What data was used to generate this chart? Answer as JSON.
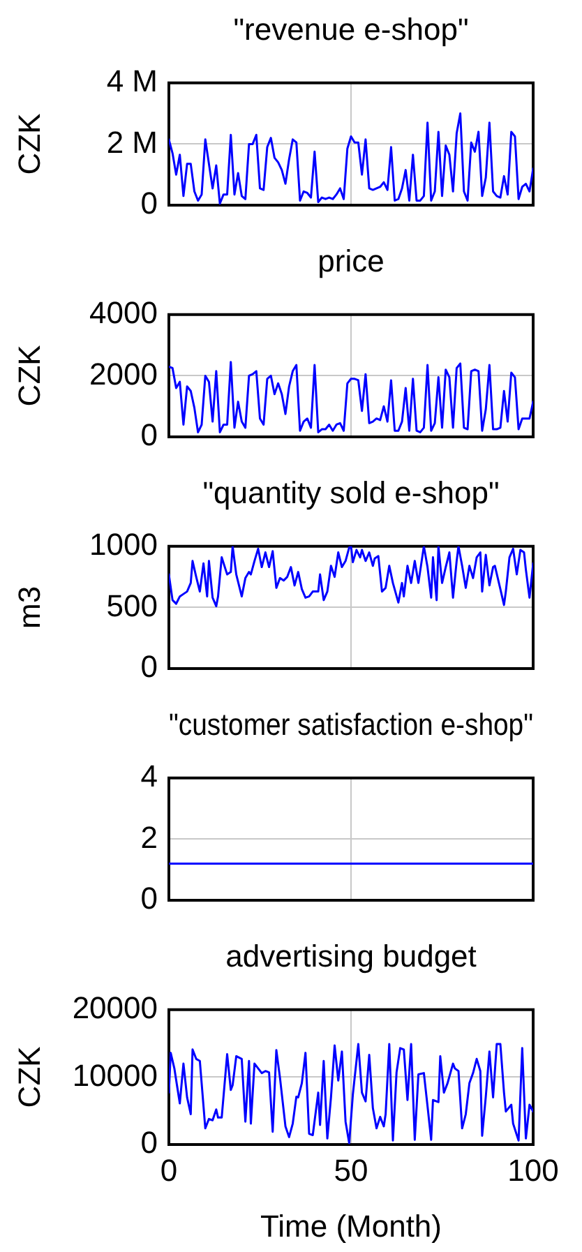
{
  "chart_data": [
    {
      "type": "line",
      "title": "\"revenue e-shop\"",
      "ylabel": "CZK",
      "color": "#0000ff",
      "xlim": [
        0,
        100
      ],
      "xticks": [
        0,
        50,
        100
      ],
      "ylim": [
        0,
        4000000
      ],
      "yticks": [
        0,
        {
          "value": 2000000,
          "label": "2 M"
        },
        {
          "value": 4000000,
          "label": "4 M"
        }
      ],
      "grid": true,
      "tick_labels": "y",
      "x": [
        0,
        1,
        2,
        3,
        4,
        5,
        6,
        7,
        8,
        9,
        10,
        11,
        12,
        13,
        14,
        15,
        16,
        17,
        18,
        19,
        20,
        21,
        22,
        23,
        24,
        25,
        26,
        27,
        28,
        29,
        30,
        31,
        32,
        33,
        34,
        35,
        36,
        37,
        38,
        39,
        40,
        41,
        42,
        43,
        44,
        45,
        46,
        47,
        48,
        49,
        50,
        51,
        52,
        53,
        54,
        55,
        56,
        57,
        58,
        59,
        60,
        61,
        62,
        63,
        64,
        65,
        66,
        67,
        68,
        69,
        70,
        71,
        72,
        73,
        74,
        75,
        76,
        77,
        78,
        79,
        80,
        81,
        82,
        83,
        84,
        85,
        86,
        87,
        88,
        89,
        90,
        91,
        92,
        93,
        94,
        95,
        96,
        97,
        98,
        99,
        100
      ],
      "values": [
        2150000,
        1700000,
        1000000,
        1650000,
        300000,
        1350000,
        1350000,
        450000,
        150000,
        350000,
        2150000,
        1350000,
        550000,
        1300000,
        50000,
        350000,
        350000,
        2300000,
        350000,
        1050000,
        300000,
        200000,
        2000000,
        2000000,
        2300000,
        550000,
        500000,
        1900000,
        2200000,
        1550000,
        1400000,
        1150000,
        700000,
        1500000,
        2150000,
        2050000,
        150000,
        450000,
        400000,
        250000,
        1750000,
        100000,
        250000,
        200000,
        250000,
        200000,
        350000,
        550000,
        200000,
        1850000,
        2250000,
        2050000,
        2050000,
        1000000,
        2150000,
        550000,
        500000,
        550000,
        600000,
        750000,
        500000,
        1900000,
        150000,
        200000,
        550000,
        1150000,
        150000,
        1650000,
        150000,
        150000,
        300000,
        2700000,
        150000,
        450000,
        2400000,
        300000,
        1950000,
        1650000,
        450000,
        2350000,
        3000000,
        450000,
        150000,
        2050000,
        1750000,
        2400000,
        300000,
        900000,
        2700000,
        450000,
        300000,
        250000,
        950000,
        350000,
        2400000,
        2250000,
        200000,
        600000,
        700000,
        450000,
        1200000
      ]
    },
    {
      "type": "line",
      "title": "price",
      "ylabel": "CZK",
      "color": "#0000ff",
      "xlim": [
        0,
        100
      ],
      "xticks": [
        0,
        50,
        100
      ],
      "ylim": [
        0,
        4000
      ],
      "yticks": [
        0,
        2000,
        4000
      ],
      "grid": true,
      "tick_labels": "y",
      "x": [
        0,
        1,
        2,
        3,
        4,
        5,
        6,
        7,
        8,
        9,
        10,
        11,
        12,
        13,
        14,
        15,
        16,
        17,
        18,
        19,
        20,
        21,
        22,
        23,
        24,
        25,
        26,
        27,
        28,
        29,
        30,
        31,
        32,
        33,
        34,
        35,
        36,
        37,
        38,
        39,
        40,
        41,
        42,
        43,
        44,
        45,
        46,
        47,
        48,
        49,
        50,
        51,
        52,
        53,
        54,
        55,
        56,
        57,
        58,
        59,
        60,
        61,
        62,
        63,
        64,
        65,
        66,
        67,
        68,
        69,
        70,
        71,
        72,
        73,
        74,
        75,
        76,
        77,
        78,
        79,
        80,
        81,
        82,
        83,
        84,
        85,
        86,
        87,
        88,
        89,
        90,
        91,
        92,
        93,
        94,
        95,
        96,
        97,
        98,
        99,
        100
      ],
      "values": [
        2300,
        2250,
        1600,
        1800,
        400,
        1650,
        1500,
        950,
        150,
        400,
        2000,
        1800,
        500,
        2150,
        150,
        400,
        400,
        2450,
        300,
        1150,
        500,
        300,
        2000,
        2050,
        2150,
        600,
        400,
        1900,
        2000,
        1400,
        1750,
        1400,
        750,
        1650,
        2150,
        2350,
        200,
        500,
        600,
        300,
        2350,
        150,
        250,
        250,
        400,
        200,
        400,
        450,
        200,
        1750,
        1900,
        1900,
        1850,
        850,
        2050,
        450,
        500,
        600,
        550,
        1000,
        500,
        1850,
        200,
        200,
        500,
        1600,
        200,
        1900,
        200,
        150,
        300,
        2350,
        200,
        450,
        1950,
        300,
        2200,
        1950,
        300,
        2250,
        2400,
        300,
        250,
        2150,
        2200,
        2150,
        200,
        900,
        2350,
        250,
        250,
        300,
        1500,
        500,
        2100,
        1950,
        250,
        600,
        600,
        600,
        1150
      ]
    },
    {
      "type": "line",
      "title": "\"quantity sold e-shop\"",
      "ylabel": "m3",
      "color": "#0000ff",
      "xlim": [
        0,
        100
      ],
      "xticks": [
        0,
        50,
        100
      ],
      "ylim": [
        0,
        1000
      ],
      "yticks": [
        0,
        500,
        1000
      ],
      "grid": true,
      "tick_labels": "y",
      "x": [
        0,
        1,
        2,
        3,
        4,
        5,
        6,
        6.5,
        7.5,
        8.5,
        9.5,
        10.5,
        11,
        12,
        13,
        13.5,
        14.5,
        16,
        17,
        17.5,
        18.5,
        20,
        21,
        22,
        22.5,
        23.5,
        24.5,
        25.5,
        26.5,
        27.5,
        28.5,
        29.5,
        30.5,
        31.5,
        32.5,
        33.5,
        34.5,
        35.5,
        36.5,
        37.5,
        38.5,
        39.5,
        41,
        41.5,
        42.5,
        43.5,
        44.5,
        45.5,
        46.5,
        47.5,
        48.5,
        49.5,
        50,
        50.5,
        51.5,
        52.5,
        53,
        54,
        55,
        56,
        56.5,
        57.5,
        58.5,
        59.5,
        60.5,
        61.5,
        63,
        64,
        64.5,
        65.5,
        66.5,
        67.5,
        68.5,
        70,
        71,
        72,
        72.5,
        73.5,
        74,
        75,
        76,
        77,
        78,
        79,
        79.5,
        80.5,
        81.5,
        82.5,
        83.5,
        84.5,
        85.5,
        86,
        87,
        88,
        89,
        89.5,
        91,
        92,
        92.5,
        93.5,
        94.5,
        95.5,
        96.5,
        97.5,
        98,
        99,
        100
      ],
      "values": [
        770,
        560,
        530,
        590,
        610,
        630,
        700,
        880,
        750,
        630,
        860,
        590,
        880,
        580,
        510,
        590,
        910,
        770,
        790,
        1000,
        770,
        590,
        740,
        790,
        770,
        880,
        980,
        830,
        950,
        830,
        960,
        660,
        740,
        720,
        750,
        830,
        680,
        790,
        650,
        580,
        590,
        630,
        630,
        770,
        560,
        630,
        840,
        750,
        950,
        830,
        880,
        990,
        1000,
        870,
        970,
        910,
        970,
        880,
        950,
        840,
        900,
        920,
        630,
        660,
        840,
        700,
        540,
        700,
        590,
        840,
        700,
        880,
        700,
        1000,
        830,
        580,
        910,
        560,
        1000,
        700,
        830,
        950,
        580,
        880,
        1000,
        840,
        660,
        840,
        740,
        910,
        950,
        630,
        930,
        680,
        830,
        840,
        650,
        520,
        630,
        910,
        980,
        770,
        970,
        950,
        810,
        580,
        860
      ]
    },
    {
      "type": "line",
      "title": "\"customer satisfaction e-shop\"",
      "color": "#0000ff",
      "xlim": [
        0,
        100
      ],
      "xticks": [
        0,
        50,
        100
      ],
      "ylim": [
        0,
        4
      ],
      "yticks": [
        0,
        2,
        4
      ],
      "grid": true,
      "tick_labels": "y",
      "x": [
        0,
        100
      ],
      "values": [
        1.2,
        1.2
      ]
    },
    {
      "type": "line",
      "title": "advertising budget",
      "ylabel": "CZK",
      "xlabel": "Time (Month)",
      "color": "#0000ff",
      "xlim": [
        0,
        100
      ],
      "xticks": [
        0,
        50,
        100
      ],
      "ylim": [
        0,
        20000
      ],
      "yticks": [
        0,
        10000,
        20000
      ],
      "grid": true,
      "x": [
        0,
        0.5,
        1.5,
        3,
        4,
        5,
        6,
        6.5,
        7.5,
        8.5,
        10,
        11,
        12,
        13,
        13.5,
        14.5,
        16,
        17,
        17.5,
        18.5,
        20,
        21,
        22,
        22.5,
        23.5,
        24.5,
        25.5,
        26.5,
        27.5,
        28.5,
        29.5,
        30.5,
        32,
        33,
        34,
        35,
        35.5,
        36.5,
        37.5,
        38.5,
        39.5,
        41,
        41.5,
        42.5,
        43.5,
        44.5,
        45.5,
        46.5,
        47.5,
        48.5,
        49.5,
        50.5,
        52,
        53,
        54,
        55,
        56,
        57,
        58,
        59,
        59.5,
        60.5,
        61.5,
        62.5,
        63.5,
        64.5,
        65.5,
        66.5,
        67.5,
        68.5,
        70,
        71,
        72,
        72.5,
        74,
        74.5,
        75.5,
        76.5,
        78,
        78.5,
        79.5,
        80.5,
        81.5,
        82.5,
        83.5,
        84.5,
        85.5,
        86,
        87,
        88,
        89,
        90,
        91,
        92,
        92.5,
        94,
        94.5,
        96,
        97,
        98,
        99,
        100
      ],
      "values": [
        7700,
        13600,
        11300,
        6100,
        12000,
        7000,
        4500,
        14100,
        12700,
        12400,
        2400,
        3800,
        3600,
        5200,
        4000,
        4000,
        13400,
        8100,
        8800,
        13100,
        12700,
        3400,
        12400,
        3100,
        12000,
        11300,
        10600,
        10900,
        10700,
        1900,
        14000,
        9900,
        2700,
        1100,
        3100,
        7100,
        7000,
        9100,
        13600,
        1600,
        1400,
        7700,
        2900,
        12400,
        900,
        7000,
        14700,
        9500,
        13800,
        3400,
        200,
        7400,
        14900,
        7700,
        6400,
        13300,
        5400,
        2400,
        4100,
        2700,
        4500,
        14900,
        600,
        10700,
        14300,
        14100,
        6600,
        14900,
        700,
        10400,
        10600,
        5700,
        700,
        6600,
        6300,
        13100,
        7700,
        9100,
        12000,
        11300,
        10900,
        2400,
        4500,
        9100,
        10600,
        12700,
        10900,
        1300,
        7100,
        13800,
        7000,
        14900,
        14900,
        7700,
        4900,
        5900,
        3100,
        600,
        14300,
        900,
        5900,
        4900
      ]
    }
  ]
}
